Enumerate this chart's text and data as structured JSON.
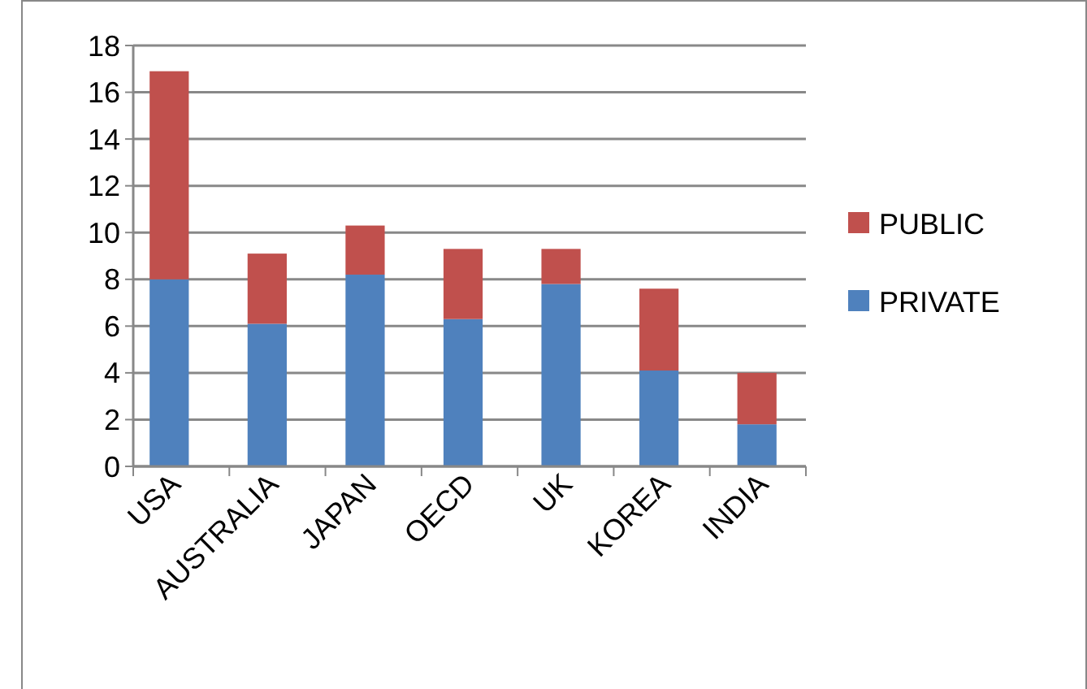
{
  "chart_data": {
    "type": "bar",
    "stacked": true,
    "categories": [
      "USA",
      "AUSTRALIA",
      "JAPAN",
      "OECD",
      "UK",
      "KOREA",
      "INDIA"
    ],
    "series": [
      {
        "name": "PRIVATE",
        "color": "#4f81bd",
        "values": [
          8.0,
          6.1,
          8.2,
          6.3,
          7.8,
          4.1,
          1.8
        ]
      },
      {
        "name": "PUBLIC",
        "color": "#c0504d",
        "values": [
          8.9,
          3.0,
          2.1,
          3.0,
          1.5,
          3.5,
          2.2
        ]
      }
    ],
    "ylim": [
      0,
      18
    ],
    "yticks": [
      0,
      2,
      4,
      6,
      8,
      10,
      12,
      14,
      16,
      18
    ],
    "grid": "y",
    "legend": "right"
  }
}
